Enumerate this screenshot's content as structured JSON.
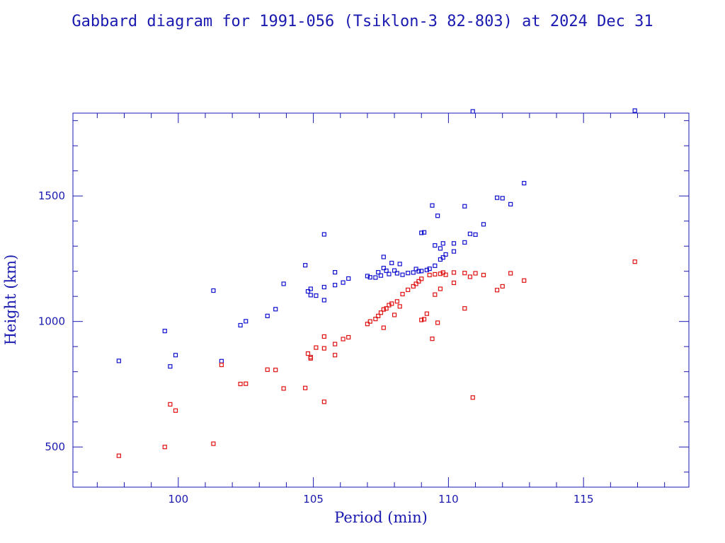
{
  "chart_data": {
    "type": "scatter",
    "title": "Gabbard diagram for 1991-056 (Tsiklon-3 82-803) at 2024 Dec 31",
    "xlabel": "Period (min)",
    "ylabel": "Height (km)",
    "xlim": [
      96.1,
      118.9
    ],
    "ylim": [
      340,
      1830
    ],
    "xticks": [
      100,
      105,
      110,
      115
    ],
    "yticks": [
      500,
      1000,
      1500
    ],
    "grid": false,
    "series": [
      {
        "color": "#1010d0",
        "marker": "square",
        "points": [
          [
            97.8,
            843
          ],
          [
            99.5,
            962
          ],
          [
            99.7,
            821
          ],
          [
            99.9,
            866
          ],
          [
            101.3,
            1123
          ],
          [
            101.6,
            842
          ],
          [
            102.3,
            985
          ],
          [
            102.5,
            1001
          ],
          [
            103.3,
            1022
          ],
          [
            103.6,
            1049
          ],
          [
            103.9,
            1150
          ],
          [
            104.7,
            1224
          ],
          [
            104.8,
            1120
          ],
          [
            104.9,
            1105
          ],
          [
            104.9,
            1130
          ],
          [
            105.1,
            1103
          ],
          [
            105.4,
            1137
          ],
          [
            105.4,
            1085
          ],
          [
            105.4,
            1347
          ],
          [
            105.8,
            1145
          ],
          [
            105.8,
            1196
          ],
          [
            106.1,
            1155
          ],
          [
            106.3,
            1171
          ],
          [
            107.0,
            1181
          ],
          [
            107.1,
            1176
          ],
          [
            107.3,
            1175
          ],
          [
            107.4,
            1196
          ],
          [
            107.5,
            1183
          ],
          [
            107.6,
            1213
          ],
          [
            107.6,
            1257
          ],
          [
            107.7,
            1202
          ],
          [
            107.8,
            1189
          ],
          [
            107.9,
            1233
          ],
          [
            108.0,
            1203
          ],
          [
            108.1,
            1192
          ],
          [
            108.2,
            1229
          ],
          [
            108.3,
            1186
          ],
          [
            108.5,
            1193
          ],
          [
            108.7,
            1195
          ],
          [
            108.8,
            1209
          ],
          [
            108.9,
            1200
          ],
          [
            109.0,
            1201
          ],
          [
            109.0,
            1353
          ],
          [
            109.1,
            1355
          ],
          [
            109.2,
            1205
          ],
          [
            109.3,
            1210
          ],
          [
            109.4,
            1462
          ],
          [
            109.5,
            1222
          ],
          [
            109.5,
            1303
          ],
          [
            109.6,
            1421
          ],
          [
            109.7,
            1247
          ],
          [
            109.7,
            1291
          ],
          [
            109.8,
            1255
          ],
          [
            109.8,
            1311
          ],
          [
            109.9,
            1267
          ],
          [
            110.2,
            1311
          ],
          [
            110.2,
            1279
          ],
          [
            110.6,
            1315
          ],
          [
            110.6,
            1459
          ],
          [
            110.8,
            1349
          ],
          [
            110.9,
            1837
          ],
          [
            111.0,
            1346
          ],
          [
            111.3,
            1387
          ],
          [
            111.8,
            1493
          ],
          [
            112.0,
            1491
          ],
          [
            112.3,
            1467
          ],
          [
            112.8,
            1551
          ],
          [
            116.9,
            1840
          ]
        ]
      },
      {
        "color": "#e01010",
        "marker": "square",
        "points": [
          [
            97.8,
            465
          ],
          [
            99.5,
            500
          ],
          [
            99.7,
            670
          ],
          [
            99.9,
            645
          ],
          [
            101.3,
            513
          ],
          [
            101.6,
            827
          ],
          [
            102.3,
            751
          ],
          [
            102.5,
            752
          ],
          [
            103.3,
            808
          ],
          [
            103.6,
            807
          ],
          [
            103.9,
            733
          ],
          [
            104.7,
            735
          ],
          [
            104.8,
            872
          ],
          [
            104.9,
            853
          ],
          [
            104.9,
            858
          ],
          [
            105.1,
            896
          ],
          [
            105.4,
            940
          ],
          [
            105.4,
            893
          ],
          [
            105.4,
            680
          ],
          [
            105.8,
            866
          ],
          [
            105.8,
            910
          ],
          [
            106.1,
            930
          ],
          [
            106.3,
            937
          ],
          [
            107.0,
            990
          ],
          [
            107.1,
            1000
          ],
          [
            107.3,
            1010
          ],
          [
            107.4,
            1022
          ],
          [
            107.5,
            1035
          ],
          [
            107.6,
            1048
          ],
          [
            107.6,
            975
          ],
          [
            107.7,
            1052
          ],
          [
            107.8,
            1065
          ],
          [
            107.9,
            1071
          ],
          [
            108.0,
            1026
          ],
          [
            108.1,
            1080
          ],
          [
            108.2,
            1060
          ],
          [
            108.3,
            1109
          ],
          [
            108.5,
            1126
          ],
          [
            108.7,
            1140
          ],
          [
            108.8,
            1150
          ],
          [
            108.9,
            1160
          ],
          [
            109.0,
            1170
          ],
          [
            109.0,
            1006
          ],
          [
            109.1,
            1009
          ],
          [
            109.2,
            1031
          ],
          [
            109.3,
            1185
          ],
          [
            109.4,
            931
          ],
          [
            109.5,
            1107
          ],
          [
            109.5,
            1188
          ],
          [
            109.6,
            995
          ],
          [
            109.7,
            1130
          ],
          [
            109.7,
            1190
          ],
          [
            109.8,
            1195
          ],
          [
            109.9,
            1186
          ],
          [
            110.2,
            1154
          ],
          [
            110.2,
            1195
          ],
          [
            110.6,
            1052
          ],
          [
            110.6,
            1193
          ],
          [
            110.8,
            1178
          ],
          [
            110.9,
            697
          ],
          [
            111.0,
            1192
          ],
          [
            111.3,
            1185
          ],
          [
            111.8,
            1125
          ],
          [
            112.0,
            1140
          ],
          [
            112.3,
            1192
          ],
          [
            112.8,
            1163
          ],
          [
            116.9,
            1238
          ]
        ]
      }
    ]
  }
}
